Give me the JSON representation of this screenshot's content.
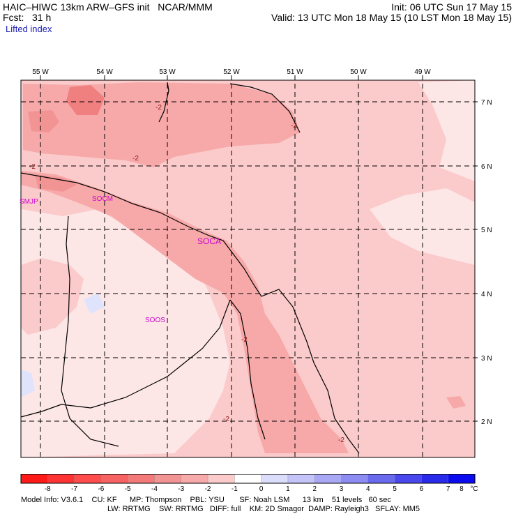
{
  "header": {
    "title_left": "HAIC–HIWC 13km ARW–GFS init   NCAR/MMM",
    "fcst": "Fcst:   31 h",
    "field": "Lifted index",
    "init": "Init: 06 UTC Sun 17 May 15",
    "valid": "Valid: 13 UTC Mon 18 May 15 (10 LST Mon 18 May 15)"
  },
  "map": {
    "lon_labels": [
      "55 W",
      "54 W",
      "53 W",
      "52 W",
      "51 W",
      "50 W",
      "49 W"
    ],
    "lat_labels": [
      "7 N",
      "6 N",
      "5 N",
      "4 N",
      "3 N",
      "2 N"
    ],
    "stations": [
      "SMJP",
      "SOCM",
      "SOCA",
      "SOOS"
    ],
    "contour_labels": [
      "-2",
      "-2",
      "-2",
      "-2",
      "-2",
      "-2",
      "-2"
    ],
    "colors": {
      "li_minus3": "#f08080",
      "li_minus2": "#f7a9a9",
      "li_minus1": "#fbcaca",
      "li_zero": "#fde6e6",
      "li_plus1": "#dfe3fb",
      "station": "#cc00cc"
    }
  },
  "colorbar": {
    "ticks": [
      "-8",
      "-7",
      "-6",
      "-5",
      "-4",
      "-3",
      "-2",
      "-1",
      "0",
      "1",
      "2",
      "3",
      "4",
      "5",
      "6",
      "7",
      "8"
    ],
    "unit": "°C",
    "colors": [
      "#ff1a1a",
      "#ff3333",
      "#ff4d4d",
      "#f76262",
      "#f47a7a",
      "#f29494",
      "#f7aaaa",
      "#fbcaca",
      "#ffffff",
      "#dcdcfb",
      "#c4c4f8",
      "#a8a8f5",
      "#8c8cf2",
      "#6a6aef",
      "#4848ec",
      "#2a2aea",
      "#0b0bf0"
    ]
  },
  "footer": {
    "line1": "Model Info: V3.6.1    CU: KF      MP: Thompson    PBL: YSU       SF: Noah LSM      13 km    51 levels   60 sec",
    "line2": "LW: RRTMG    SW: RRTMG   DIFF: full    KM: 2D Smagor  DAMP: Rayleigh3   SFLAY: MM5"
  }
}
